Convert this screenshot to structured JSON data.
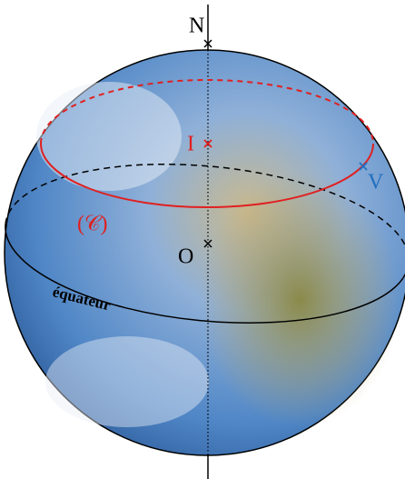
{
  "labels": {
    "north": "N",
    "point_i": "I",
    "point_v": "V",
    "circle": "(𝒞)",
    "center": "O",
    "equator": "équateur"
  }
}
